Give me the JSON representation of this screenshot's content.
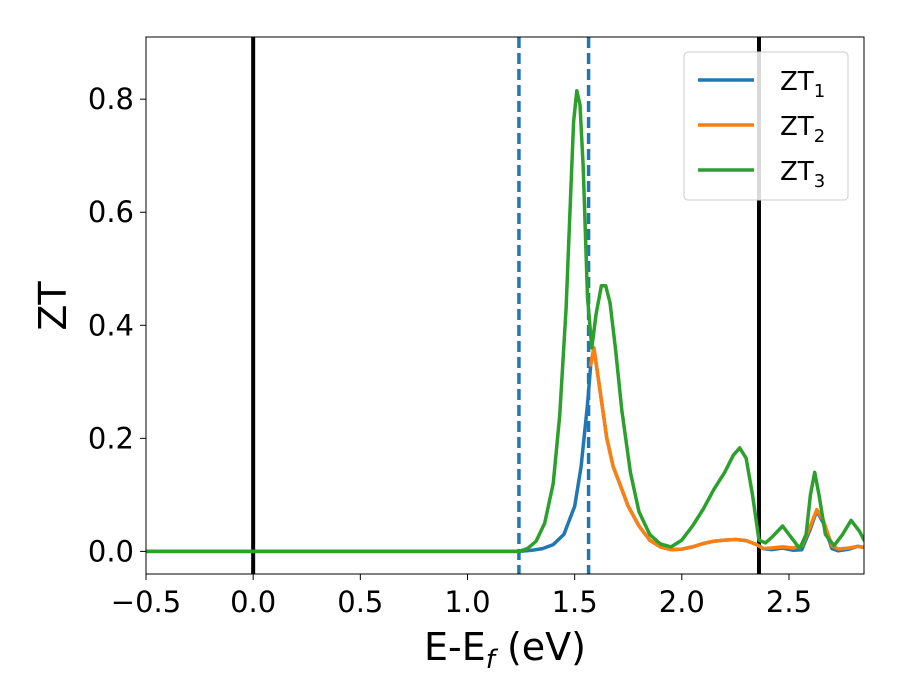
{
  "chart_data": {
    "type": "line",
    "xlabel": "E-E",
    "xlabel_sub": "f",
    "xlabel_unit": " (eV)",
    "ylabel": "ZT",
    "xlim": [
      -0.5,
      2.85
    ],
    "ylim": [
      -0.04,
      0.91
    ],
    "x_ticks": [
      -0.5,
      0.0,
      0.5,
      1.0,
      1.5,
      2.0,
      2.5
    ],
    "x_tick_labels": [
      "−0.5",
      "0.0",
      "0.5",
      "1.0",
      "1.5",
      "2.0",
      "2.5"
    ],
    "y_ticks": [
      0.0,
      0.2,
      0.4,
      0.6,
      0.8
    ],
    "y_tick_labels": [
      "0.0",
      "0.2",
      "0.4",
      "0.6",
      "0.8"
    ],
    "grid": false,
    "legend_position": "top-right",
    "vertical_lines": [
      {
        "x": 0.0,
        "style": "solid",
        "color": "#000000"
      },
      {
        "x": 2.36,
        "style": "solid",
        "color": "#000000"
      },
      {
        "x": 1.24,
        "style": "dashed",
        "color": "#1f77b4"
      },
      {
        "x": 1.565,
        "style": "dashed",
        "color": "#1f77b4"
      }
    ],
    "series": [
      {
        "name": "ZT",
        "name_sub": "1",
        "color": "#1f77b4",
        "points": [
          [
            -0.5,
            0.0
          ],
          [
            1.24,
            0.0
          ],
          [
            1.3,
            0.002
          ],
          [
            1.35,
            0.005
          ],
          [
            1.4,
            0.012
          ],
          [
            1.45,
            0.03
          ],
          [
            1.5,
            0.08
          ],
          [
            1.53,
            0.15
          ],
          [
            1.56,
            0.26
          ],
          [
            1.575,
            0.33
          ],
          [
            1.59,
            0.36
          ],
          [
            1.62,
            0.28
          ],
          [
            1.65,
            0.2
          ],
          [
            1.68,
            0.15
          ],
          [
            1.71,
            0.12
          ],
          [
            1.75,
            0.08
          ],
          [
            1.8,
            0.045
          ],
          [
            1.85,
            0.02
          ],
          [
            1.9,
            0.008
          ],
          [
            1.95,
            0.003
          ],
          [
            2.0,
            0.004
          ],
          [
            2.05,
            0.008
          ],
          [
            2.1,
            0.014
          ],
          [
            2.15,
            0.018
          ],
          [
            2.2,
            0.02
          ],
          [
            2.25,
            0.021
          ],
          [
            2.3,
            0.019
          ],
          [
            2.35,
            0.012
          ],
          [
            2.38,
            0.005
          ],
          [
            2.42,
            0.003
          ],
          [
            2.47,
            0.006
          ],
          [
            2.52,
            0.002
          ],
          [
            2.56,
            0.003
          ],
          [
            2.6,
            0.04
          ],
          [
            2.63,
            0.072
          ],
          [
            2.66,
            0.05
          ],
          [
            2.7,
            0.005
          ],
          [
            2.73,
            0.001
          ],
          [
            2.78,
            0.004
          ],
          [
            2.82,
            0.009
          ],
          [
            2.85,
            0.007
          ]
        ]
      },
      {
        "name": "ZT",
        "name_sub": "2",
        "color": "#ff7f0e",
        "points": [
          [
            1.575,
            0.33
          ],
          [
            1.59,
            0.36
          ],
          [
            1.62,
            0.28
          ],
          [
            1.65,
            0.2
          ],
          [
            1.68,
            0.15
          ],
          [
            1.71,
            0.12
          ],
          [
            1.75,
            0.08
          ],
          [
            1.8,
            0.045
          ],
          [
            1.85,
            0.02
          ],
          [
            1.9,
            0.008
          ],
          [
            1.95,
            0.003
          ],
          [
            2.0,
            0.004
          ],
          [
            2.05,
            0.008
          ],
          [
            2.1,
            0.014
          ],
          [
            2.15,
            0.018
          ],
          [
            2.2,
            0.02
          ],
          [
            2.25,
            0.021
          ],
          [
            2.3,
            0.019
          ],
          [
            2.35,
            0.012
          ],
          [
            2.38,
            0.005
          ],
          [
            2.42,
            0.006
          ],
          [
            2.47,
            0.008
          ],
          [
            2.52,
            0.006
          ],
          [
            2.56,
            0.01
          ],
          [
            2.6,
            0.045
          ],
          [
            2.63,
            0.074
          ],
          [
            2.66,
            0.055
          ],
          [
            2.7,
            0.01
          ],
          [
            2.73,
            0.004
          ],
          [
            2.78,
            0.006
          ],
          [
            2.82,
            0.009
          ],
          [
            2.85,
            0.007
          ]
        ]
      },
      {
        "name": "ZT",
        "name_sub": "3",
        "color": "#2ca02c",
        "points": [
          [
            -0.5,
            0.0
          ],
          [
            1.24,
            0.0
          ],
          [
            1.28,
            0.005
          ],
          [
            1.32,
            0.018
          ],
          [
            1.36,
            0.05
          ],
          [
            1.4,
            0.12
          ],
          [
            1.43,
            0.24
          ],
          [
            1.46,
            0.43
          ],
          [
            1.48,
            0.62
          ],
          [
            1.495,
            0.76
          ],
          [
            1.51,
            0.815
          ],
          [
            1.525,
            0.79
          ],
          [
            1.54,
            0.68
          ],
          [
            1.56,
            0.45
          ],
          [
            1.58,
            0.36
          ],
          [
            1.6,
            0.42
          ],
          [
            1.625,
            0.47
          ],
          [
            1.645,
            0.47
          ],
          [
            1.665,
            0.44
          ],
          [
            1.69,
            0.36
          ],
          [
            1.72,
            0.25
          ],
          [
            1.76,
            0.14
          ],
          [
            1.8,
            0.07
          ],
          [
            1.85,
            0.03
          ],
          [
            1.9,
            0.013
          ],
          [
            1.95,
            0.008
          ],
          [
            2.0,
            0.02
          ],
          [
            2.05,
            0.045
          ],
          [
            2.1,
            0.075
          ],
          [
            2.15,
            0.11
          ],
          [
            2.2,
            0.14
          ],
          [
            2.24,
            0.17
          ],
          [
            2.27,
            0.183
          ],
          [
            2.3,
            0.165
          ],
          [
            2.33,
            0.1
          ],
          [
            2.36,
            0.02
          ],
          [
            2.39,
            0.015
          ],
          [
            2.42,
            0.025
          ],
          [
            2.47,
            0.045
          ],
          [
            2.51,
            0.025
          ],
          [
            2.55,
            0.005
          ],
          [
            2.58,
            0.03
          ],
          [
            2.6,
            0.1
          ],
          [
            2.62,
            0.14
          ],
          [
            2.64,
            0.1
          ],
          [
            2.67,
            0.03
          ],
          [
            2.71,
            0.01
          ],
          [
            2.75,
            0.03
          ],
          [
            2.79,
            0.055
          ],
          [
            2.83,
            0.035
          ],
          [
            2.85,
            0.02
          ]
        ]
      }
    ]
  }
}
